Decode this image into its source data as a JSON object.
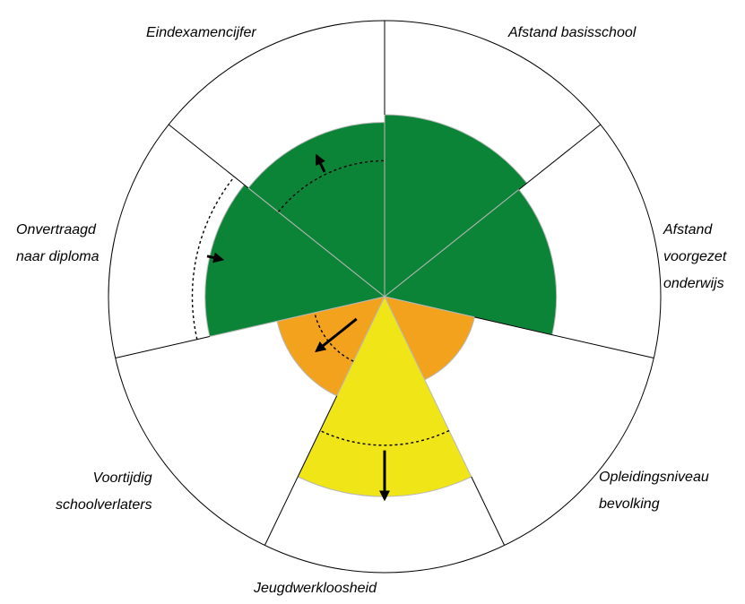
{
  "chart_data": {
    "type": "polar-area",
    "title": "",
    "max_value": 100,
    "categories": [
      "Afstand basisschool",
      "Afstand voorgezet onderwijs",
      "Opleidingsniveau bevolking",
      "Jeugdwerkloosheid",
      "Voortijdig schoolverlaters",
      "Onvertraagd naar diploma",
      "Eindexamencijfer"
    ],
    "category_labels": [
      "Afstand basisschool",
      "Afstand\nvoorgezet\nonderwijs",
      "Opleidingsniveau\nbevolking",
      "Jeugdwerkloosheid",
      "Voortijdig\nschoolverlaters",
      "Onvertraagd\nnaar diploma",
      "Eindexamencijfer"
    ],
    "values": [
      71,
      67,
      36,
      78,
      43,
      70,
      68
    ],
    "colors": [
      "#0b8438",
      "#0b8438",
      "#f3a21d",
      "#f0e516",
      "#f3a21d",
      "#0b8438",
      "#0b8438"
    ],
    "reference": [
      null,
      null,
      null,
      58,
      28,
      75,
      53
    ],
    "trend_arrows": [
      null,
      null,
      null,
      {
        "from": 60,
        "to": 79
      },
      {
        "from": 14,
        "to": 34
      },
      {
        "from": 71,
        "to": 65
      },
      {
        "from": 54,
        "to": 61
      }
    ],
    "grid": false,
    "legend": "none"
  }
}
